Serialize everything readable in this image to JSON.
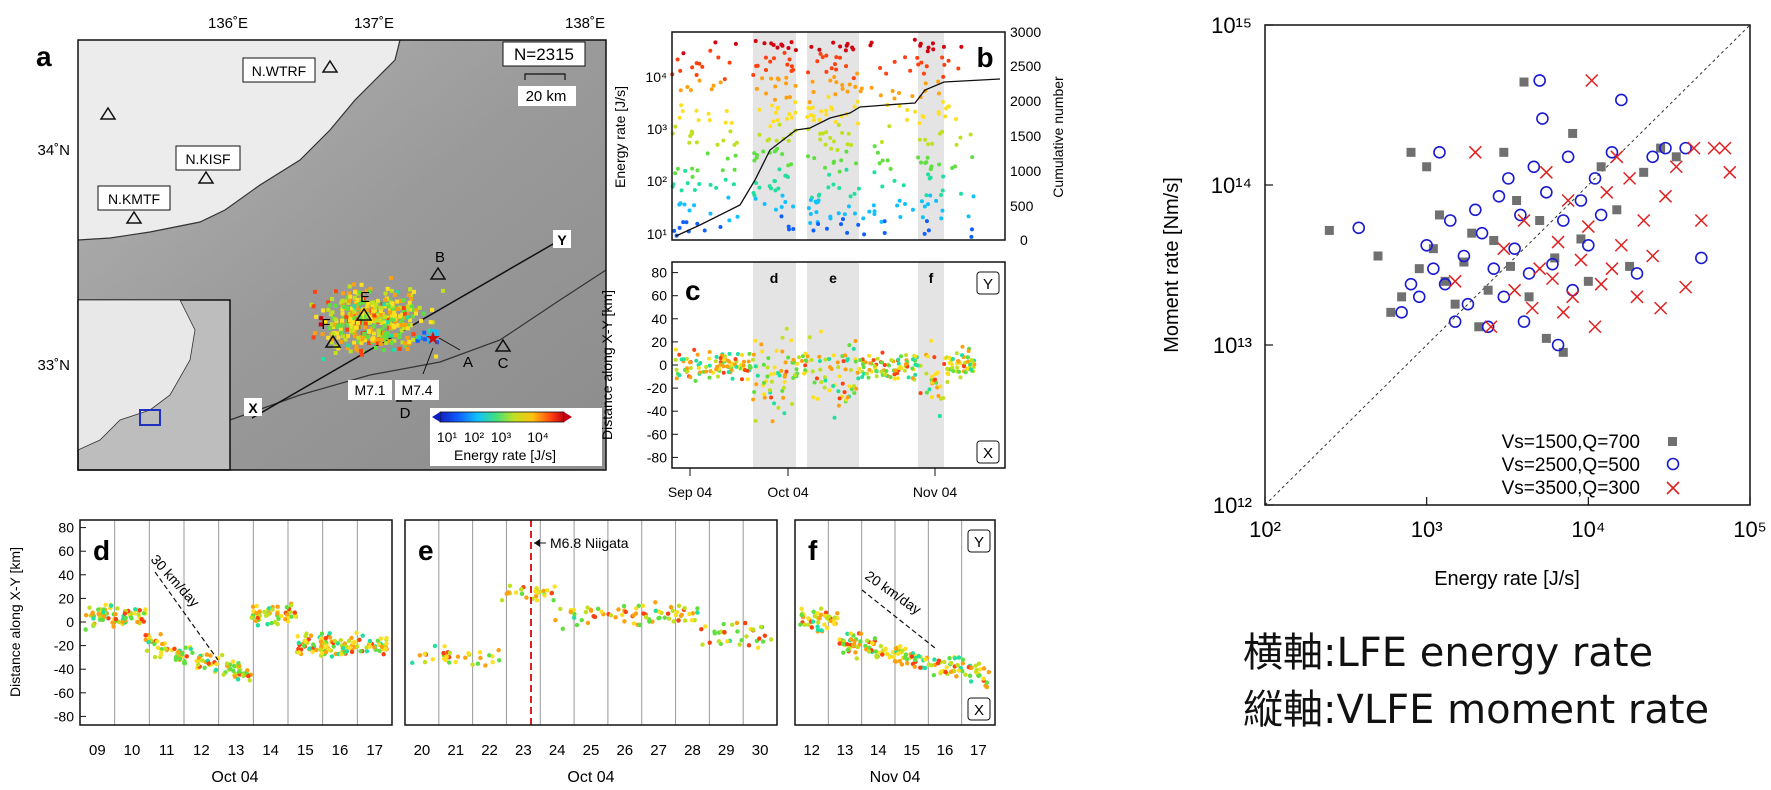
{
  "map_panel": {
    "label": "a",
    "count_label": "N=2315",
    "scale_label": "20 km",
    "lon_ticks": [
      "136˚E",
      "137˚E",
      "138˚E"
    ],
    "lat_ticks": [
      "34˚N",
      "33˚N"
    ],
    "stations": [
      "N.WTRF",
      "N.KISF",
      "N.KMTF"
    ],
    "site_labels": [
      "B",
      "E",
      "F",
      "A",
      "C",
      "D"
    ],
    "event_labels": [
      "M7.1",
      "M7.4"
    ],
    "line_ends": [
      "X",
      "Y"
    ],
    "colorbar_ticks": [
      "10¹",
      "10²",
      "10³",
      "10⁴"
    ],
    "colorbar_title": "Energy rate [J/s]",
    "colorbar_colors": [
      "#1020c0",
      "#1060ff",
      "#10c0ff",
      "#20e0a0",
      "#60e040",
      "#c0e020",
      "#ffe020",
      "#ffa010",
      "#ff4010",
      "#d00010"
    ]
  },
  "panel_b": {
    "label": "b",
    "ylabel": "Energy rate [J/s]",
    "y2label": "Cumulative number",
    "yticks": [
      "10¹",
      "10²",
      "10³",
      "10⁴"
    ],
    "y2ticks": [
      "0",
      "500",
      "1000",
      "1500",
      "2000",
      "2500",
      "3000"
    ]
  },
  "panel_c": {
    "label": "c",
    "ylabel": "Distance along X-Y [km]",
    "yticks": [
      "80",
      "60",
      "40",
      "20",
      "0",
      "-20",
      "-40",
      "-60",
      "-80"
    ],
    "xticks": [
      "Sep 04",
      "Oct 04",
      "Nov 04"
    ],
    "window_labels": [
      "d",
      "e",
      "f"
    ],
    "box_top": "Y",
    "box_bottom": "X"
  },
  "panel_d": {
    "label": "d",
    "ylabel": "Distance along X-Y [km]",
    "yticks": [
      "80",
      "60",
      "40",
      "20",
      "0",
      "-20",
      "-40",
      "-60",
      "-80"
    ],
    "xticks": [
      "09",
      "10",
      "11",
      "12",
      "13",
      "14",
      "15",
      "16",
      "17"
    ],
    "xlabel": "Oct 04",
    "annotation": "30 km/day"
  },
  "panel_e": {
    "label": "e",
    "xticks": [
      "20",
      "21",
      "22",
      "23",
      "24",
      "25",
      "26",
      "27",
      "28",
      "29",
      "30"
    ],
    "xlabel": "Oct 04",
    "annotation": "M6.8 Niigata"
  },
  "panel_f": {
    "label": "f",
    "xticks": [
      "12",
      "13",
      "14",
      "15",
      "16",
      "17"
    ],
    "xlabel": "Nov 04",
    "annotation": "20 km/day",
    "box_top": "Y",
    "box_bottom": "X"
  },
  "chart_data": {
    "type": "scatter",
    "xlabel": "Energy rate [J/s]",
    "ylabel": "Moment rate [Nm/s]",
    "x_scale": "log",
    "y_scale": "log",
    "xlim": [
      100,
      100000
    ],
    "ylim": [
      1000000000000,
      1000000000000000
    ],
    "xticks": [
      {
        "value": 100,
        "label": "10²"
      },
      {
        "value": 1000,
        "label": "10³"
      },
      {
        "value": 10000,
        "label": "10⁴"
      },
      {
        "value": 100000,
        "label": "10⁵"
      }
    ],
    "yticks": [
      {
        "value": 1000000000000,
        "label": "10¹²"
      },
      {
        "value": 10000000000000,
        "label": "10¹³"
      },
      {
        "value": 100000000000000,
        "label": "10¹⁴"
      },
      {
        "value": 1000000000000000,
        "label": "10¹⁵"
      }
    ],
    "reference_line": "y = x (1:1, dashed)",
    "legend_position": "bottom-right",
    "series": [
      {
        "name": "Vs=1500,Q=700",
        "marker": "square",
        "color": "#707070",
        "points": [
          [
            250,
            52000000000000.0
          ],
          [
            500,
            36000000000000.0
          ],
          [
            600,
            16000000000000.0
          ],
          [
            700,
            20000000000000.0
          ],
          [
            800,
            160000000000000.0
          ],
          [
            900,
            30000000000000.0
          ],
          [
            1000,
            130000000000000.0
          ],
          [
            1100,
            40000000000000.0
          ],
          [
            1200,
            65000000000000.0
          ],
          [
            1300,
            25000000000000.0
          ],
          [
            1500,
            18000000000000.0
          ],
          [
            1700,
            33000000000000.0
          ],
          [
            1900,
            50000000000000.0
          ],
          [
            2100,
            13000000000000.0
          ],
          [
            2400,
            22000000000000.0
          ],
          [
            2600,
            45000000000000.0
          ],
          [
            3000,
            160000000000000.0
          ],
          [
            3300,
            31000000000000.0
          ],
          [
            3600,
            80000000000000.0
          ],
          [
            4000,
            440000000000000.0
          ],
          [
            4300,
            20000000000000.0
          ],
          [
            5000,
            60000000000000.0
          ],
          [
            5500,
            11000000000000.0
          ],
          [
            6200,
            35000000000000.0
          ],
          [
            7000,
            9000000000000.0
          ],
          [
            8000,
            210000000000000.0
          ],
          [
            9000,
            46000000000000.0
          ],
          [
            10000,
            25000000000000.0
          ],
          [
            12000,
            130000000000000.0
          ],
          [
            15000,
            70000000000000.0
          ],
          [
            18000,
            31000000000000.0
          ],
          [
            22000,
            120000000000000.0
          ],
          [
            28000,
            170000000000000.0
          ],
          [
            35000,
            150000000000000.0
          ]
        ]
      },
      {
        "name": "Vs=2500,Q=500",
        "marker": "circle",
        "color": "#1a1ad0",
        "points": [
          [
            380,
            54000000000000.0
          ],
          [
            700,
            16000000000000.0
          ],
          [
            800,
            24000000000000.0
          ],
          [
            900,
            20000000000000.0
          ],
          [
            1000,
            42000000000000.0
          ],
          [
            1100,
            30000000000000.0
          ],
          [
            1200,
            160000000000000.0
          ],
          [
            1300,
            24000000000000.0
          ],
          [
            1400,
            60000000000000.0
          ],
          [
            1500,
            14000000000000.0
          ],
          [
            1700,
            36000000000000.0
          ],
          [
            1800,
            18000000000000.0
          ],
          [
            2000,
            70000000000000.0
          ],
          [
            2200,
            50000000000000.0
          ],
          [
            2400,
            13000000000000.0
          ],
          [
            2600,
            30000000000000.0
          ],
          [
            2800,
            85000000000000.0
          ],
          [
            3000,
            20000000000000.0
          ],
          [
            3200,
            110000000000000.0
          ],
          [
            3500,
            40000000000000.0
          ],
          [
            3800,
            65000000000000.0
          ],
          [
            4000,
            14000000000000.0
          ],
          [
            4300,
            28000000000000.0
          ],
          [
            4600,
            130000000000000.0
          ],
          [
            5000,
            450000000000000.0
          ],
          [
            5200,
            260000000000000.0
          ],
          [
            5500,
            90000000000000.0
          ],
          [
            6000,
            32000000000000.0
          ],
          [
            6500,
            10000000000000.0
          ],
          [
            7000,
            60000000000000.0
          ],
          [
            7500,
            150000000000000.0
          ],
          [
            8000,
            22000000000000.0
          ],
          [
            9000,
            80000000000000.0
          ],
          [
            10000,
            42000000000000.0
          ],
          [
            11000,
            110000000000000.0
          ],
          [
            12000,
            65000000000000.0
          ],
          [
            14000,
            160000000000000.0
          ],
          [
            16000,
            340000000000000.0
          ],
          [
            20000,
            28000000000000.0
          ],
          [
            25000,
            150000000000000.0
          ],
          [
            30000,
            170000000000000.0
          ],
          [
            40000,
            170000000000000.0
          ],
          [
            50000,
            35000000000000.0
          ]
        ]
      },
      {
        "name": "Vs=3500,Q=300",
        "marker": "x",
        "color": "#e02020",
        "points": [
          [
            1500,
            25000000000000.0
          ],
          [
            2000,
            160000000000000.0
          ],
          [
            2500,
            13000000000000.0
          ],
          [
            3000,
            40000000000000.0
          ],
          [
            3500,
            22000000000000.0
          ],
          [
            4000,
            60000000000000.0
          ],
          [
            4500,
            17000000000000.0
          ],
          [
            5000,
            30000000000000.0
          ],
          [
            5500,
            120000000000000.0
          ],
          [
            6000,
            26000000000000.0
          ],
          [
            6500,
            44000000000000.0
          ],
          [
            7000,
            16000000000000.0
          ],
          [
            7500,
            80000000000000.0
          ],
          [
            8000,
            20000000000000.0
          ],
          [
            9000,
            34000000000000.0
          ],
          [
            10000,
            55000000000000.0
          ],
          [
            10500,
            450000000000000.0
          ],
          [
            11000,
            13000000000000.0
          ],
          [
            12000,
            24000000000000.0
          ],
          [
            13000,
            90000000000000.0
          ],
          [
            14000,
            30000000000000.0
          ],
          [
            15000,
            150000000000000.0
          ],
          [
            16000,
            42000000000000.0
          ],
          [
            18000,
            110000000000000.0
          ],
          [
            20000,
            20000000000000.0
          ],
          [
            22000,
            60000000000000.0
          ],
          [
            25000,
            36000000000000.0
          ],
          [
            28000,
            17000000000000.0
          ],
          [
            30000,
            85000000000000.0
          ],
          [
            35000,
            130000000000000.0
          ],
          [
            40000,
            23000000000000.0
          ],
          [
            45000,
            170000000000000.0
          ],
          [
            50000,
            60000000000000.0
          ],
          [
            60000,
            170000000000000.0
          ],
          [
            70000,
            170000000000000.0
          ],
          [
            75000,
            120000000000000.0
          ]
        ]
      }
    ]
  },
  "captions": [
    {
      "axis": "横軸",
      "sep": ":",
      "text": "LFE energy rate"
    },
    {
      "axis": "縦軸",
      "sep": ":",
      "text": "VLFE moment rate"
    }
  ]
}
